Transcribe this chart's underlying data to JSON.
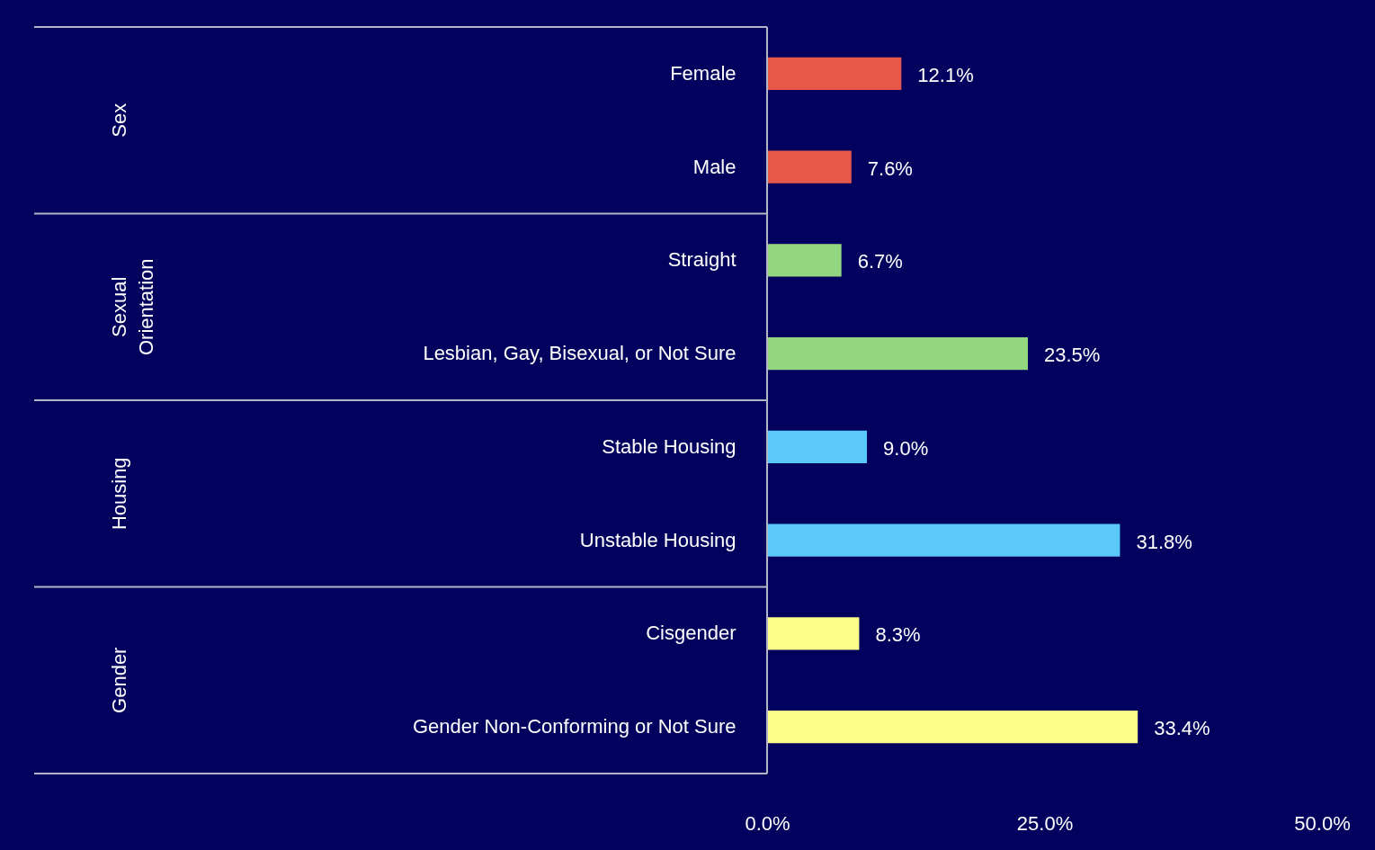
{
  "chart_data": {
    "type": "bar",
    "orientation": "horizontal",
    "categories": [
      "Female",
      "Male",
      "Straight",
      "Lesbian, Gay, Bisexual, or Not Sure",
      "Stable Housing",
      "Unstable Housing",
      "Cisgender",
      "Gender Non-Conforming or Not Sure"
    ],
    "values": [
      12.1,
      7.6,
      6.7,
      23.5,
      9.0,
      31.8,
      8.3,
      33.4
    ],
    "value_labels": [
      "12.1%",
      "7.6%",
      "6.7%",
      "23.5%",
      "9.0%",
      "31.8%",
      "8.3%",
      "33.4%"
    ],
    "colors": [
      "#e8584a",
      "#e8584a",
      "#92d67f",
      "#92d67f",
      "#5bc8fa",
      "#5bc8fa",
      "#fdfd8a",
      "#fdfd8a"
    ],
    "xlim": [
      0,
      50
    ],
    "xticks": [
      {
        "value": 0,
        "label": "0.0%"
      },
      {
        "value": 25,
        "label": "25.0%"
      },
      {
        "value": 50,
        "label": "50.0%"
      }
    ],
    "annotations": [
      "Sex",
      "Sexual Orientation",
      "Housing",
      "Gender"
    ],
    "grid": false
  }
}
